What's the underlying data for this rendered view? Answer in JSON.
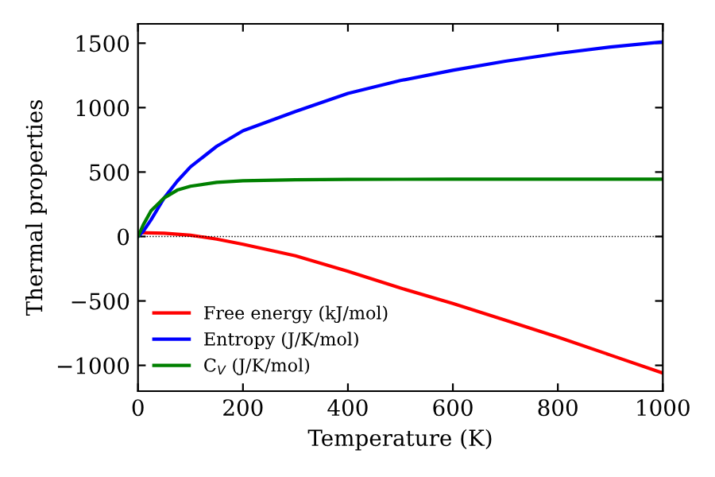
{
  "chart_data": {
    "type": "line",
    "xlabel": "Temperature (K)",
    "ylabel": "Thermal properties",
    "xlim": [
      0,
      1000
    ],
    "ylim": [
      -1200,
      1650
    ],
    "xticks": [
      0,
      200,
      400,
      600,
      800,
      1000
    ],
    "yticks": [
      {
        "value": -1000,
        "label": "−1000"
      },
      {
        "value": -500,
        "label": "−500"
      },
      0,
      500,
      1000,
      1500
    ],
    "grid": false,
    "legend": "bottom left",
    "line_style": "solid",
    "marker": "none",
    "ref_lines": [
      {
        "axis": "y",
        "value": 0,
        "color": "#000000",
        "line_style": "dotted"
      }
    ],
    "series": [
      {
        "name": "Free energy (kJ/mol)",
        "color": "#ff0000",
        "x": [
          0,
          50,
          100,
          150,
          200,
          300,
          400,
          500,
          600,
          700,
          800,
          900,
          1000
        ],
        "values": [
          30,
          25,
          10,
          -20,
          -60,
          -150,
          -270,
          -400,
          -520,
          -650,
          -780,
          -920,
          -1060
        ]
      },
      {
        "name": "Entropy (J/K/mol)",
        "color": "#0000ff",
        "x": [
          0,
          10,
          25,
          50,
          75,
          100,
          150,
          200,
          300,
          400,
          500,
          600,
          700,
          800,
          900,
          1000
        ],
        "values": [
          0,
          40,
          130,
          300,
          430,
          540,
          700,
          820,
          970,
          1110,
          1210,
          1290,
          1360,
          1420,
          1470,
          1510
        ]
      },
      {
        "name": "C$_{V}$ (J/K/mol)",
        "color": "#008000",
        "x": [
          0,
          10,
          25,
          50,
          75,
          100,
          150,
          200,
          300,
          400,
          500,
          600,
          700,
          800,
          900,
          1000
        ],
        "values": [
          0,
          90,
          200,
          300,
          360,
          390,
          420,
          432,
          440,
          443,
          444,
          445,
          445,
          445,
          445,
          445
        ]
      }
    ]
  }
}
